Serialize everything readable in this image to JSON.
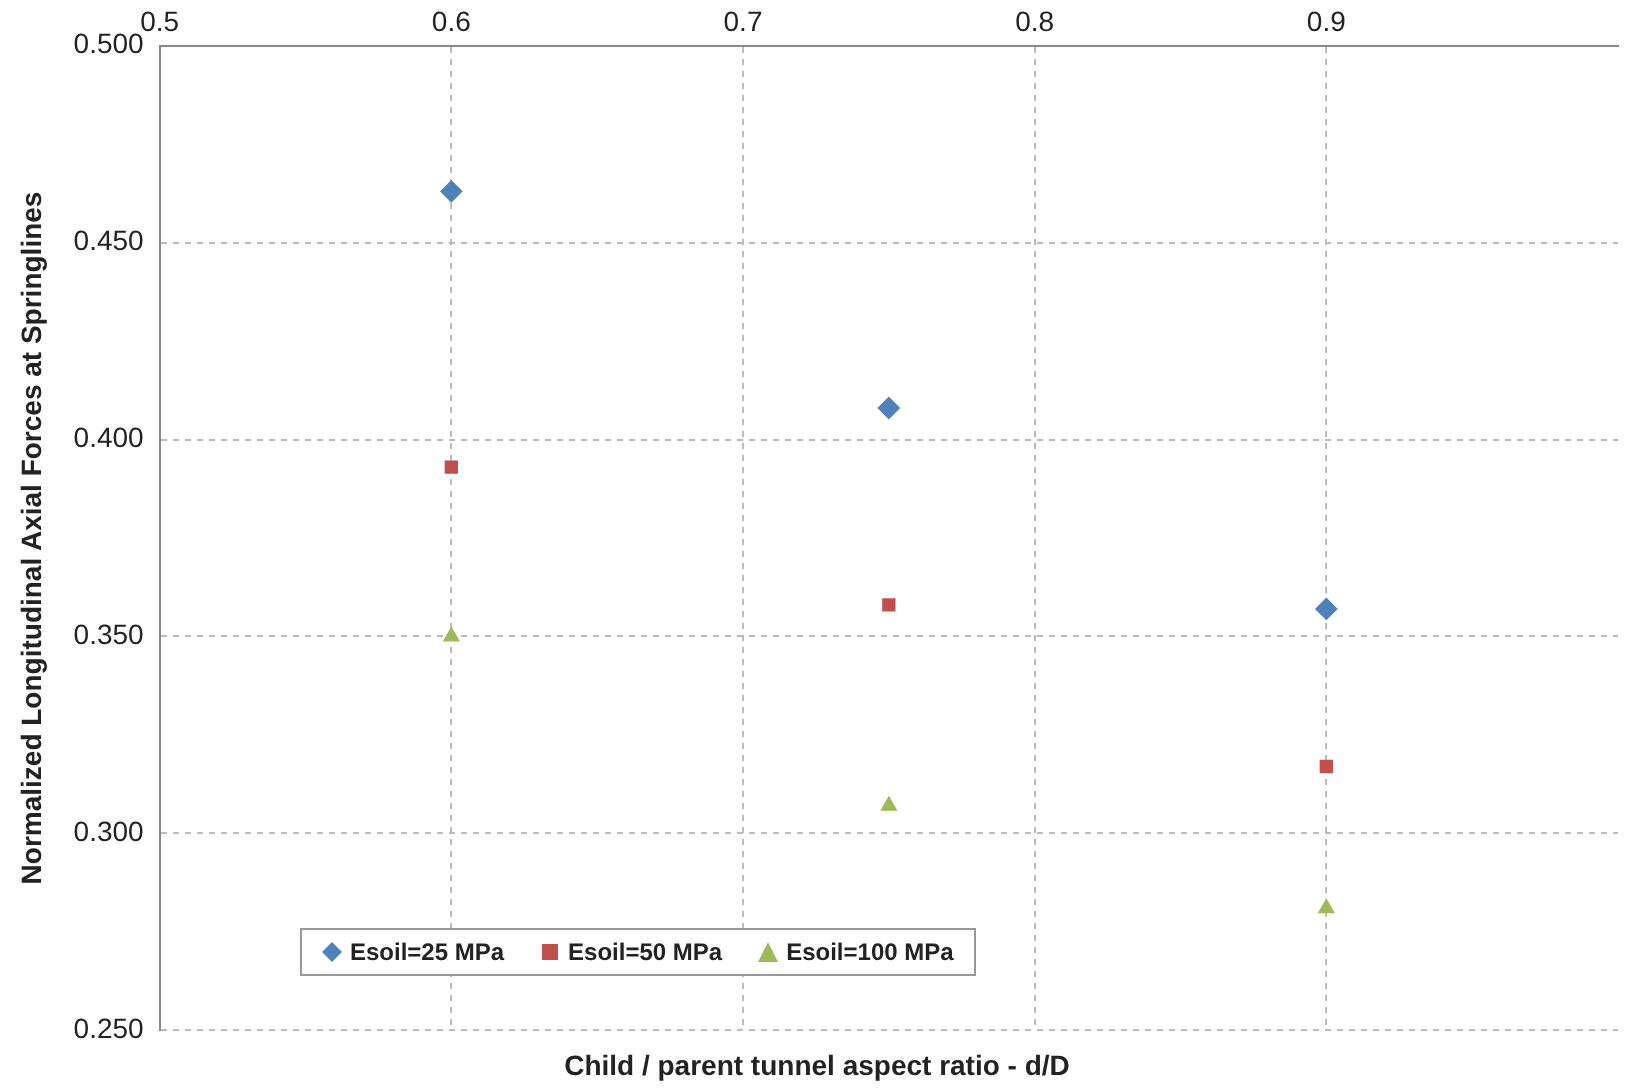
{
  "chart_data": {
    "type": "scatter",
    "xlabel": "Child / parent tunnel aspect ratio - d/D",
    "ylabel": "Normalized Longitudinal Axial Forces at Springlines",
    "xlim": [
      0.5,
      1.0
    ],
    "xticks": [
      0.5,
      0.6,
      0.7,
      0.8,
      0.9
    ],
    "ylim": [
      0.25,
      0.5
    ],
    "yticks": [
      {
        "value": 0.25,
        "label": "0.250"
      },
      {
        "value": 0.3,
        "label": "0.300"
      },
      {
        "value": 0.35,
        "label": "0.350"
      },
      {
        "value": 0.4,
        "label": "0.400"
      },
      {
        "value": 0.45,
        "label": "0.450"
      },
      {
        "value": 0.5,
        "label": "0.500"
      }
    ],
    "grid": true,
    "legend": "bottom left",
    "line_style": "dashed",
    "series": [
      {
        "name": "Esoil=25 MPa",
        "color": "#4f81bd",
        "marker": "diamond",
        "x": [
          0.6,
          0.75,
          0.9
        ],
        "values": [
          0.463,
          0.408,
          0.357
        ]
      },
      {
        "name": "Esoil=50 MPa",
        "color": "#c0504d",
        "marker": "square",
        "x": [
          0.6,
          0.75,
          0.9
        ],
        "values": [
          0.393,
          0.358,
          0.317
        ]
      },
      {
        "name": "Esoil=100 MPa",
        "color": "#9bbb59",
        "marker": "triangle",
        "x": [
          0.6,
          0.75,
          0.9
        ],
        "values": [
          0.35,
          0.307,
          0.281
        ]
      }
    ]
  }
}
